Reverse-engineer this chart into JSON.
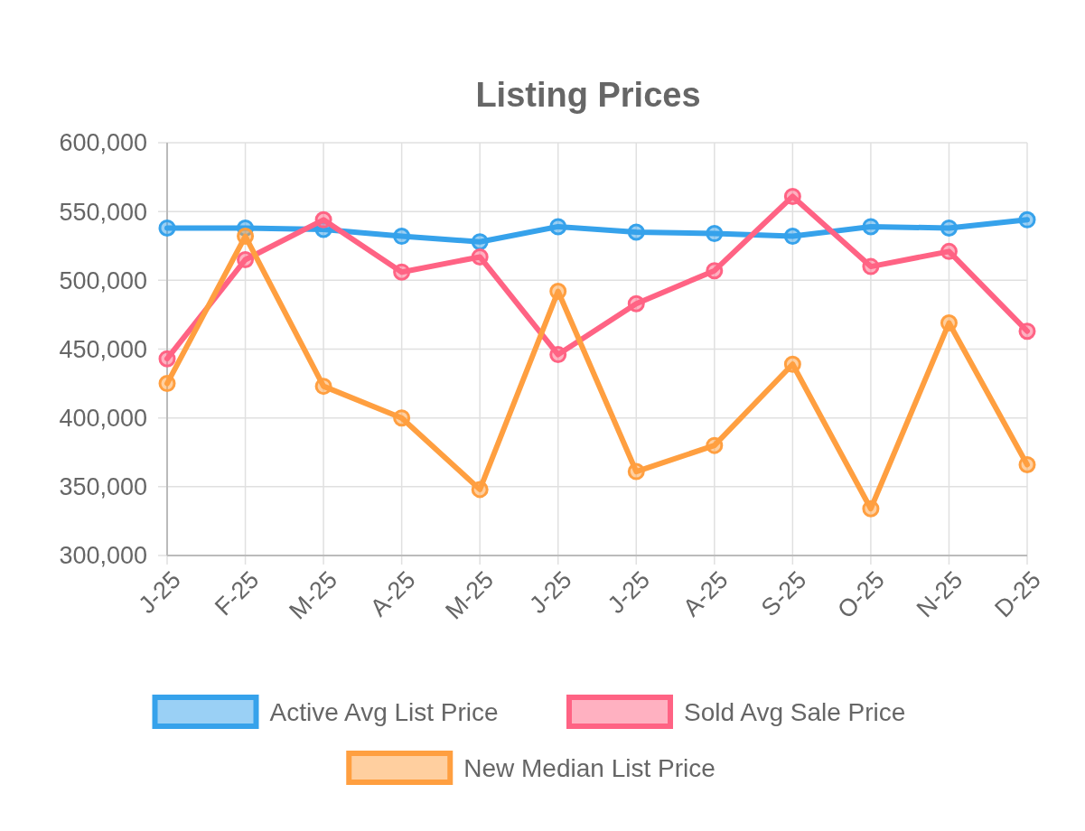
{
  "chart_data": {
    "type": "line",
    "title": "Listing Prices",
    "categories": [
      "J-25",
      "F-25",
      "M-25",
      "A-25",
      "M-25",
      "J-25",
      "J-25",
      "A-25",
      "S-25",
      "O-25",
      "N-25",
      "D-25"
    ],
    "series": [
      {
        "name": "Active Avg List Price",
        "color": "#36a2eb",
        "values": [
          538000,
          538000,
          537000,
          532000,
          528000,
          539000,
          535000,
          534000,
          532000,
          539000,
          538000,
          544000
        ]
      },
      {
        "name": "Sold Avg Sale Price",
        "color": "#ff6384",
        "values": [
          443000,
          515000,
          544000,
          506000,
          517000,
          446000,
          483000,
          507000,
          561000,
          510000,
          521000,
          463000
        ]
      },
      {
        "name": "New Median List Price",
        "color": "#ff9f40",
        "values": [
          425000,
          532000,
          423000,
          400000,
          348000,
          492000,
          361000,
          380000,
          439000,
          334000,
          469000,
          366000
        ]
      }
    ],
    "ylim": [
      300000,
      600000
    ],
    "yticks": [
      {
        "value": 300000,
        "label": "300,000"
      },
      {
        "value": 350000,
        "label": "350,000"
      },
      {
        "value": 400000,
        "label": "400,000"
      },
      {
        "value": 450000,
        "label": "450,000"
      },
      {
        "value": 500000,
        "label": "500,000"
      },
      {
        "value": 550000,
        "label": "550,000"
      },
      {
        "value": 600000,
        "label": "600,000"
      }
    ],
    "grid": true,
    "legend": "bottom",
    "marker": "circle",
    "line_style": "solid"
  }
}
